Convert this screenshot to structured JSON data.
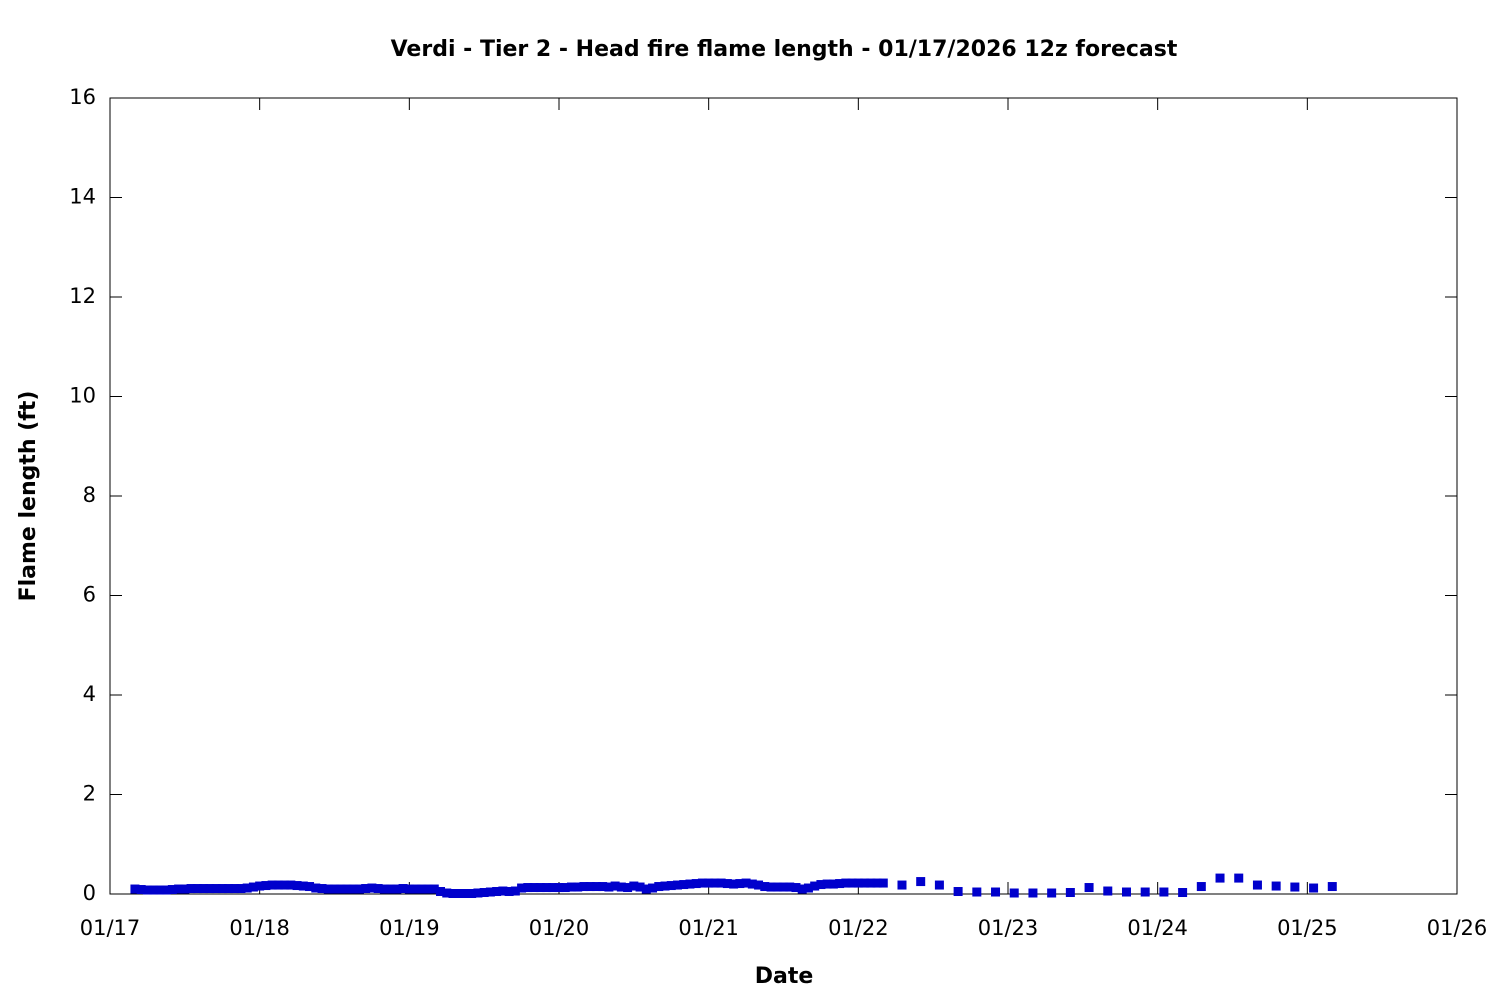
{
  "chart_data": {
    "type": "scatter",
    "title": "Verdi - Tier 2 - Head fire flame length - 01/17/2026 12z forecast",
    "xlabel": "Date",
    "ylabel": "Flame length (ft)",
    "xlim": [
      0,
      216
    ],
    "ylim": [
      0,
      16
    ],
    "xticks": [
      {
        "value": 0,
        "label": "01/17"
      },
      {
        "value": 24,
        "label": "01/18"
      },
      {
        "value": 48,
        "label": "01/19"
      },
      {
        "value": 72,
        "label": "01/20"
      },
      {
        "value": 96,
        "label": "01/21"
      },
      {
        "value": 120,
        "label": "01/22"
      },
      {
        "value": 144,
        "label": "01/23"
      },
      {
        "value": 168,
        "label": "01/24"
      },
      {
        "value": 192,
        "label": "01/25"
      },
      {
        "value": 216,
        "label": "01/26"
      }
    ],
    "yticks": [
      0,
      2,
      4,
      6,
      8,
      10,
      12,
      14,
      16
    ],
    "color": "#0000cc",
    "x": [
      4,
      5,
      6,
      7,
      8,
      9,
      10,
      11,
      12,
      13,
      14,
      15,
      16,
      17,
      18,
      19,
      20,
      21,
      22,
      23,
      24,
      25,
      26,
      27,
      28,
      29,
      30,
      31,
      32,
      33,
      34,
      35,
      36,
      37,
      38,
      39,
      40,
      41,
      42,
      43,
      44,
      45,
      46,
      47,
      48,
      49,
      50,
      51,
      52,
      53,
      54,
      55,
      56,
      57,
      58,
      59,
      60,
      61,
      62,
      63,
      64,
      65,
      66,
      67,
      68,
      69,
      70,
      71,
      72,
      73,
      74,
      75,
      76,
      77,
      78,
      79,
      80,
      81,
      82,
      83,
      84,
      85,
      86,
      87,
      88,
      89,
      90,
      91,
      92,
      93,
      94,
      95,
      96,
      97,
      98,
      99,
      100,
      101,
      102,
      103,
      104,
      105,
      106,
      107,
      108,
      109,
      110,
      111,
      112,
      113,
      114,
      115,
      116,
      117,
      118,
      119,
      120,
      121,
      122,
      123,
      124,
      127,
      130,
      133,
      136,
      139,
      142,
      145,
      148,
      151,
      154,
      157,
      160,
      163,
      166,
      169,
      172,
      175,
      178,
      181,
      184,
      187,
      190,
      193,
      196
    ],
    "values": [
      0.1,
      0.09,
      0.08,
      0.08,
      0.08,
      0.08,
      0.09,
      0.1,
      0.1,
      0.11,
      0.11,
      0.11,
      0.11,
      0.11,
      0.11,
      0.11,
      0.11,
      0.11,
      0.12,
      0.14,
      0.16,
      0.17,
      0.18,
      0.18,
      0.18,
      0.18,
      0.17,
      0.16,
      0.15,
      0.12,
      0.11,
      0.1,
      0.1,
      0.1,
      0.1,
      0.1,
      0.1,
      0.11,
      0.12,
      0.11,
      0.1,
      0.1,
      0.1,
      0.11,
      0.1,
      0.1,
      0.1,
      0.1,
      0.1,
      0.05,
      0.02,
      0.01,
      0.01,
      0.01,
      0.01,
      0.02,
      0.03,
      0.04,
      0.05,
      0.06,
      0.05,
      0.06,
      0.12,
      0.13,
      0.13,
      0.13,
      0.13,
      0.13,
      0.13,
      0.13,
      0.14,
      0.14,
      0.15,
      0.15,
      0.15,
      0.15,
      0.14,
      0.16,
      0.14,
      0.13,
      0.16,
      0.14,
      0.1,
      0.12,
      0.15,
      0.16,
      0.17,
      0.18,
      0.19,
      0.2,
      0.21,
      0.22,
      0.22,
      0.22,
      0.22,
      0.21,
      0.2,
      0.21,
      0.22,
      0.2,
      0.18,
      0.15,
      0.14,
      0.14,
      0.14,
      0.14,
      0.13,
      0.1,
      0.12,
      0.16,
      0.19,
      0.2,
      0.2,
      0.21,
      0.22,
      0.22,
      0.22,
      0.22,
      0.22,
      0.22,
      0.22,
      0.18,
      0.25,
      0.18,
      0.05,
      0.04,
      0.04,
      0.02,
      0.02,
      0.02,
      0.03,
      0.13,
      0.06,
      0.04,
      0.04,
      0.04,
      0.03,
      0.15,
      0.32,
      0.32,
      0.18,
      0.16,
      0.14,
      0.12,
      0.15
    ]
  }
}
